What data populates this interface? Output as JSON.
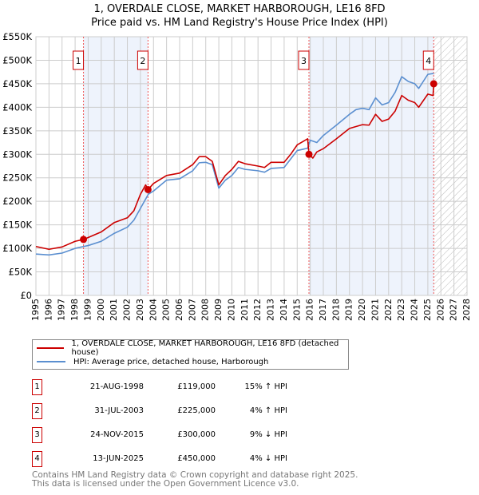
{
  "title": "1, OVERDALE CLOSE, MARKET HARBOROUGH, LE16 8FD",
  "subtitle": "Price paid vs. HM Land Registry's House Price Index (HPI)",
  "colors": {
    "property": "#cc0000",
    "hpi": "#5b8fd0",
    "shade": "#eef3fc"
  },
  "chart_data": {
    "type": "line",
    "xlim": [
      1995,
      2028
    ],
    "ylim": [
      0,
      550000
    ],
    "x_ticks": [
      "1995",
      "1996",
      "1997",
      "1998",
      "1999",
      "2000",
      "2001",
      "2002",
      "2003",
      "2004",
      "2005",
      "2006",
      "2007",
      "2008",
      "2009",
      "2010",
      "2011",
      "2012",
      "2013",
      "2014",
      "2015",
      "2016",
      "2017",
      "2018",
      "2019",
      "2020",
      "2021",
      "2022",
      "2023",
      "2024",
      "2025",
      "2026",
      "2027",
      "2028"
    ],
    "y_ticks": [
      {
        "v": 0,
        "label": "£0"
      },
      {
        "v": 50000,
        "label": "£50K"
      },
      {
        "v": 100000,
        "label": "£100K"
      },
      {
        "v": 150000,
        "label": "£150K"
      },
      {
        "v": 200000,
        "label": "£200K"
      },
      {
        "v": 250000,
        "label": "£250K"
      },
      {
        "v": 300000,
        "label": "£300K"
      },
      {
        "v": 350000,
        "label": "£350K"
      },
      {
        "v": 400000,
        "label": "£400K"
      },
      {
        "v": 450000,
        "label": "£450K"
      },
      {
        "v": 500000,
        "label": "£500K"
      },
      {
        "v": 550000,
        "label": "£550K"
      }
    ],
    "grid": true,
    "series": [
      {
        "name": "1, OVERDALE CLOSE, MARKET HARBOROUGH, LE16 8FD (detached house)",
        "color": "#cc0000",
        "x": [
          1995,
          1996,
          1997,
          1998,
          1998.64,
          1999,
          2000,
          2001,
          2002,
          2002.5,
          2003,
          2003.4,
          2003.58,
          2004,
          2005,
          2006,
          2007,
          2007.5,
          2008,
          2008.5,
          2009,
          2009.5,
          2010,
          2010.5,
          2011,
          2012,
          2012.5,
          2013,
          2014,
          2014.5,
          2015,
          2015.8,
          2015.9,
          2016.2,
          2016.5,
          2017,
          2018,
          2019,
          2020,
          2020.5,
          2021,
          2021.5,
          2022,
          2022.5,
          2023,
          2023.5,
          2024,
          2024.3,
          2025,
          2025.4,
          2025.45
        ],
        "y": [
          104000,
          98000,
          103000,
          115000,
          119000,
          123000,
          135000,
          155000,
          165000,
          180000,
          215000,
          235000,
          225000,
          238000,
          255000,
          260000,
          278000,
          295000,
          295000,
          285000,
          235000,
          255000,
          268000,
          285000,
          280000,
          275000,
          272000,
          283000,
          283000,
          300000,
          320000,
          333000,
          300000,
          292000,
          305000,
          312000,
          333000,
          355000,
          363000,
          362000,
          385000,
          370000,
          375000,
          392000,
          425000,
          415000,
          410000,
          400000,
          428000,
          425000,
          450000
        ]
      },
      {
        "name": "HPI: Average price, detached house, Harborough",
        "color": "#5b8fd0",
        "x": [
          1995,
          1996,
          1997,
          1998,
          1998.64,
          1999,
          2000,
          2001,
          2002,
          2002.5,
          2003,
          2003.6,
          2004,
          2005,
          2006,
          2007,
          2007.5,
          2008,
          2008.5,
          2009,
          2009.5,
          2010,
          2010.5,
          2011,
          2012,
          2012.5,
          2013,
          2014,
          2014.5,
          2015,
          2015.8,
          2016,
          2016.5,
          2017,
          2018,
          2019,
          2019.5,
          2020,
          2020.5,
          2021,
          2021.5,
          2022,
          2022.5,
          2023,
          2023.5,
          2024,
          2024.3,
          2025,
          2025.45
        ],
        "y": [
          88000,
          86000,
          90000,
          100000,
          104000,
          106000,
          115000,
          132000,
          145000,
          160000,
          185000,
          215000,
          222000,
          245000,
          248000,
          265000,
          282000,
          283000,
          278000,
          228000,
          245000,
          255000,
          272000,
          268000,
          265000,
          262000,
          270000,
          272000,
          290000,
          308000,
          313000,
          330000,
          325000,
          340000,
          362000,
          385000,
          395000,
          398000,
          395000,
          420000,
          405000,
          410000,
          432000,
          465000,
          455000,
          450000,
          440000,
          470000,
          472000
        ]
      }
    ],
    "sales": [
      {
        "n": "1",
        "x": 1998.64,
        "y": 119000,
        "date": "21-AUG-1998",
        "price": "£119,000",
        "hpi": "15% ↑ HPI"
      },
      {
        "n": "2",
        "x": 2003.58,
        "y": 225000,
        "date": "31-JUL-2003",
        "price": "£225,000",
        "hpi": "4% ↑ HPI"
      },
      {
        "n": "3",
        "x": 2015.9,
        "y": 300000,
        "date": "24-NOV-2015",
        "price": "£300,000",
        "hpi": "9% ↓ HPI"
      },
      {
        "n": "4",
        "x": 2025.45,
        "y": 450000,
        "date": "13-JUN-2025",
        "price": "£450,000",
        "hpi": "4% ↓ HPI"
      }
    ],
    "legend_placement": "below"
  },
  "footer": [
    "Contains HM Land Registry data © Crown copyright and database right 2025.",
    "This data is licensed under the Open Government Licence v3.0."
  ]
}
